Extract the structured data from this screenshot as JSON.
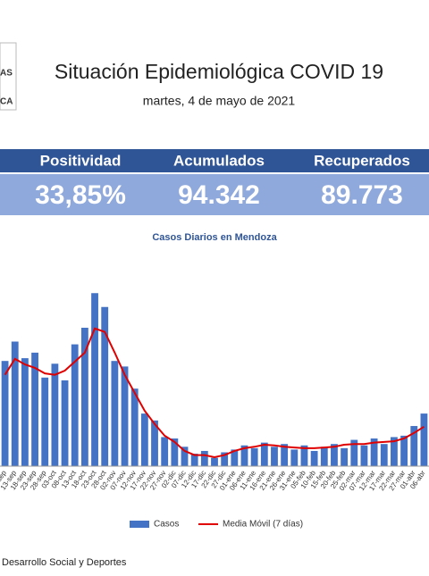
{
  "header": {
    "logo_top": "AS",
    "logo_bottom": "CA",
    "title": "Situación Epidemiológica COVID 19",
    "date": "martes, 4 de mayo de 2021"
  },
  "stats": [
    {
      "label": "Positividad",
      "value": "33,85%"
    },
    {
      "label": "Acumulados",
      "value": "94.342"
    },
    {
      "label": "Recuperados",
      "value": "89.773"
    }
  ],
  "chart_data": {
    "type": "bar",
    "title": "Casos Diarios en Mendoza",
    "categories": [
      "08-sep",
      "13-sep",
      "18-sep",
      "23-sep",
      "28-sep",
      "03-oct",
      "08-oct",
      "13-oct",
      "18-oct",
      "23-oct",
      "28-oct",
      "02-nov",
      "07-nov",
      "12-nov",
      "17-nov",
      "22-nov",
      "27-nov",
      "02-dic",
      "07-dic",
      "12-dic",
      "17-dic",
      "22-dic",
      "27-dic",
      "01-ene",
      "06-ene",
      "11-ene",
      "16-ene",
      "21-ene",
      "26-ene",
      "31-ene",
      "05-feb",
      "10-feb",
      "15-feb",
      "20-feb",
      "25-feb",
      "02-mar",
      "07-mar",
      "12-mar",
      "17-mar",
      "22-mar",
      "27-mar",
      "01-abr",
      "06-abr"
    ],
    "series": [
      {
        "name": "Casos",
        "color": "#4472c4",
        "values": [
          760,
          900,
          780,
          820,
          640,
          740,
          620,
          880,
          1000,
          1250,
          1150,
          760,
          720,
          560,
          380,
          330,
          210,
          200,
          140,
          90,
          110,
          60,
          100,
          120,
          150,
          130,
          170,
          140,
          160,
          120,
          150,
          110,
          140,
          160,
          130,
          190,
          150,
          200,
          160,
          210,
          220,
          290,
          380
        ]
      },
      {
        "name": "Media Móvil (7 días)",
        "color": "#e00000",
        "values": [
          660,
          775,
          735,
          710,
          670,
          660,
          690,
          755,
          820,
          995,
          970,
          820,
          660,
          530,
          400,
          305,
          220,
          175,
          110,
          80,
          80,
          65,
          80,
          110,
          130,
          140,
          155,
          150,
          140,
          135,
          130,
          130,
          135,
          140,
          155,
          160,
          160,
          170,
          175,
          180,
          200,
          240,
          285
        ]
      }
    ],
    "ylim": [
      0,
      1400
    ]
  },
  "footer": {
    "text": "Desarrollo Social y Deportes"
  }
}
